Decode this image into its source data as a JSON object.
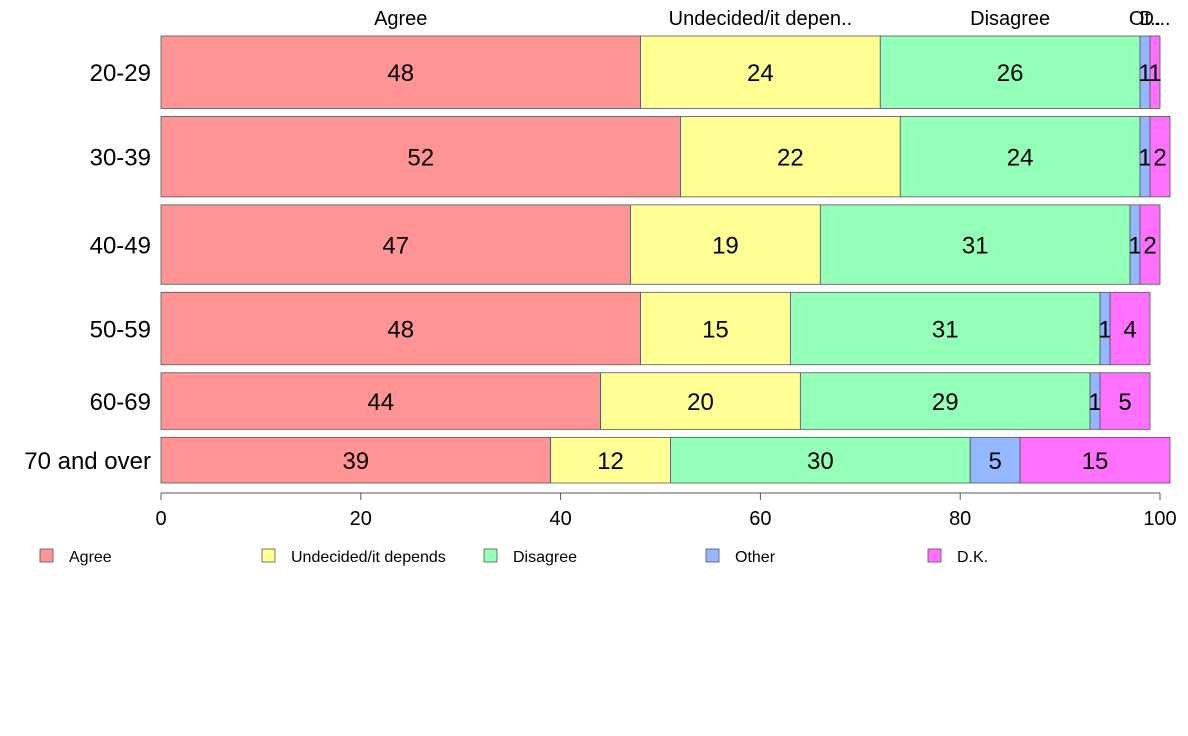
{
  "chart_data": {
    "type": "bar",
    "orientation": "horizontal",
    "stacked": true,
    "categories": [
      "20-29",
      "30-39",
      "40-49",
      "50-59",
      "60-69",
      "70 and over"
    ],
    "series": [
      {
        "name": "Agree",
        "color": "#ff9494",
        "values": [
          48,
          52,
          47,
          48,
          44,
          39
        ]
      },
      {
        "name": "Undecided/it depends",
        "color": "#ffff94",
        "values": [
          24,
          22,
          19,
          15,
          20,
          12
        ]
      },
      {
        "name": "Disagree",
        "color": "#94ffb8",
        "values": [
          26,
          24,
          31,
          31,
          29,
          30
        ]
      },
      {
        "name": "Other",
        "color": "#94b8ff",
        "values": [
          1,
          1,
          1,
          1,
          1,
          5
        ]
      },
      {
        "name": "D.K.",
        "color": "#ff70ff",
        "values": [
          1,
          2,
          2,
          4,
          5,
          15
        ]
      }
    ],
    "column_headers": [
      "Agree",
      "Undecided/it depen..",
      "Disagree",
      "Ot..",
      "D..."
    ],
    "xlim": [
      0,
      100
    ],
    "xticks": [
      0,
      20,
      40,
      60,
      80,
      100
    ],
    "grid": false,
    "legend_position": "bottom",
    "row_weights": [
      0.73,
      0.81,
      0.8,
      0.73,
      0.57,
      0.46
    ]
  }
}
